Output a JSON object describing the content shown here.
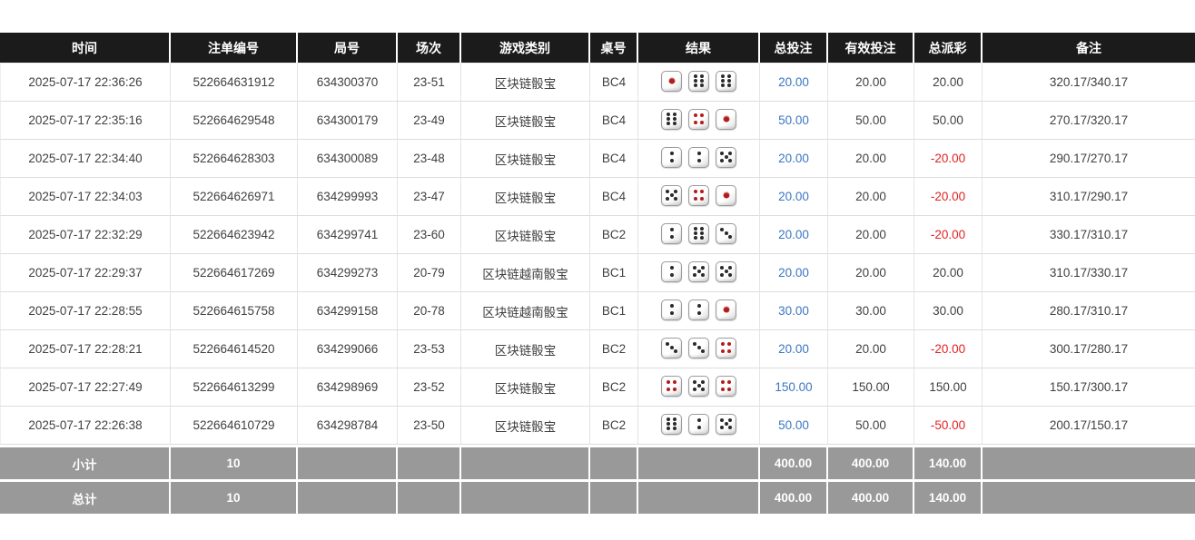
{
  "colors": {
    "header_bg": "#1b1b1b",
    "footer_bg": "#999999",
    "bet_amount_blue": "#3b76c3",
    "negative_red": "#e02222",
    "pip_black": "#2a2a2a",
    "pip_red": "#b31b1b"
  },
  "table": {
    "columns": [
      {
        "key": "time",
        "label": "时间"
      },
      {
        "key": "bet_id",
        "label": "注单编号"
      },
      {
        "key": "round_id",
        "label": "局号"
      },
      {
        "key": "session",
        "label": "场次"
      },
      {
        "key": "game_type",
        "label": "游戏类别"
      },
      {
        "key": "table_no",
        "label": "桌号"
      },
      {
        "key": "result",
        "label": "结果"
      },
      {
        "key": "total_bet",
        "label": "总投注"
      },
      {
        "key": "valid_bet",
        "label": "有效投注"
      },
      {
        "key": "payout",
        "label": "总派彩"
      },
      {
        "key": "remark",
        "label": "备注"
      }
    ],
    "rows": [
      {
        "time": "2025-07-17 22:36:26",
        "bet_id": "522664631912",
        "round_id": "634300370",
        "session": "23-51",
        "game_type": "区块链骰宝",
        "table_no": "BC4",
        "dice": [
          1,
          6,
          6
        ],
        "total_bet": "20.00",
        "valid_bet": "20.00",
        "payout": "20.00",
        "remark": "320.17/340.17"
      },
      {
        "time": "2025-07-17 22:35:16",
        "bet_id": "522664629548",
        "round_id": "634300179",
        "session": "23-49",
        "game_type": "区块链骰宝",
        "table_no": "BC4",
        "dice": [
          6,
          4,
          1
        ],
        "total_bet": "50.00",
        "valid_bet": "50.00",
        "payout": "50.00",
        "remark": "270.17/320.17"
      },
      {
        "time": "2025-07-17 22:34:40",
        "bet_id": "522664628303",
        "round_id": "634300089",
        "session": "23-48",
        "game_type": "区块链骰宝",
        "table_no": "BC4",
        "dice": [
          2,
          2,
          5
        ],
        "total_bet": "20.00",
        "valid_bet": "20.00",
        "payout": "-20.00",
        "remark": "290.17/270.17"
      },
      {
        "time": "2025-07-17 22:34:03",
        "bet_id": "522664626971",
        "round_id": "634299993",
        "session": "23-47",
        "game_type": "区块链骰宝",
        "table_no": "BC4",
        "dice": [
          5,
          4,
          1
        ],
        "total_bet": "20.00",
        "valid_bet": "20.00",
        "payout": "-20.00",
        "remark": "310.17/290.17"
      },
      {
        "time": "2025-07-17 22:32:29",
        "bet_id": "522664623942",
        "round_id": "634299741",
        "session": "23-60",
        "game_type": "区块链骰宝",
        "table_no": "BC2",
        "dice": [
          2,
          6,
          3
        ],
        "total_bet": "20.00",
        "valid_bet": "20.00",
        "payout": "-20.00",
        "remark": "330.17/310.17"
      },
      {
        "time": "2025-07-17 22:29:37",
        "bet_id": "522664617269",
        "round_id": "634299273",
        "session": "20-79",
        "game_type": "区块链越南骰宝",
        "table_no": "BC1",
        "dice": [
          2,
          5,
          5
        ],
        "total_bet": "20.00",
        "valid_bet": "20.00",
        "payout": "20.00",
        "remark": "310.17/330.17"
      },
      {
        "time": "2025-07-17 22:28:55",
        "bet_id": "522664615758",
        "round_id": "634299158",
        "session": "20-78",
        "game_type": "区块链越南骰宝",
        "table_no": "BC1",
        "dice": [
          2,
          2,
          1
        ],
        "total_bet": "30.00",
        "valid_bet": "30.00",
        "payout": "30.00",
        "remark": "280.17/310.17"
      },
      {
        "time": "2025-07-17 22:28:21",
        "bet_id": "522664614520",
        "round_id": "634299066",
        "session": "23-53",
        "game_type": "区块链骰宝",
        "table_no": "BC2",
        "dice": [
          3,
          3,
          4
        ],
        "total_bet": "20.00",
        "valid_bet": "20.00",
        "payout": "-20.00",
        "remark": "300.17/280.17"
      },
      {
        "time": "2025-07-17 22:27:49",
        "bet_id": "522664613299",
        "round_id": "634298969",
        "session": "23-52",
        "game_type": "区块链骰宝",
        "table_no": "BC2",
        "dice": [
          4,
          5,
          4
        ],
        "total_bet": "150.00",
        "valid_bet": "150.00",
        "payout": "150.00",
        "remark": "150.17/300.17"
      },
      {
        "time": "2025-07-17 22:26:38",
        "bet_id": "522664610729",
        "round_id": "634298784",
        "session": "23-50",
        "game_type": "区块链骰宝",
        "table_no": "BC2",
        "dice": [
          6,
          2,
          5
        ],
        "total_bet": "50.00",
        "valid_bet": "50.00",
        "payout": "-50.00",
        "remark": "200.17/150.17"
      }
    ],
    "footer": [
      {
        "label": "小计",
        "count": "10",
        "total_bet": "400.00",
        "valid_bet": "400.00",
        "payout": "140.00"
      },
      {
        "label": "总计",
        "count": "10",
        "total_bet": "400.00",
        "valid_bet": "400.00",
        "payout": "140.00"
      }
    ]
  }
}
